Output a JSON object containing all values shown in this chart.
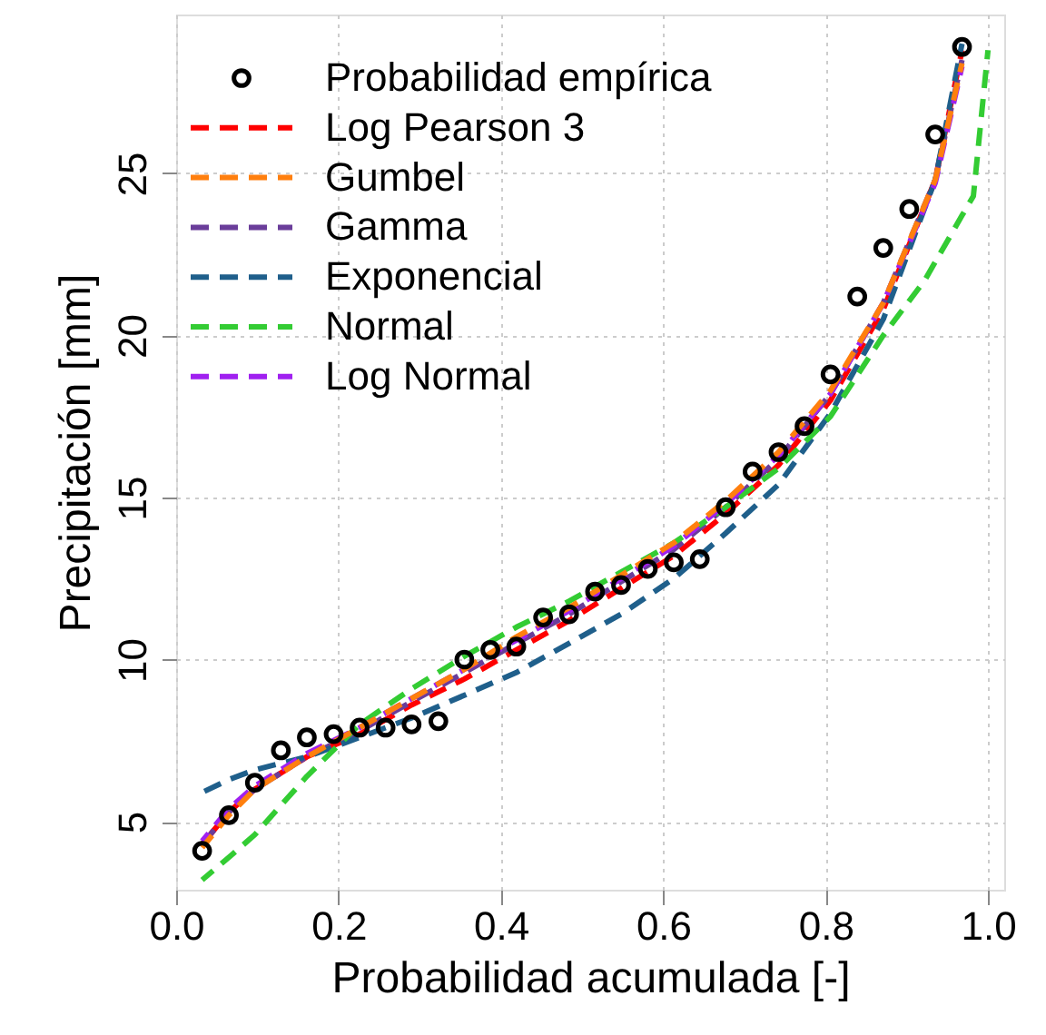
{
  "chart_data": {
    "type": "line",
    "xlabel": "Probabilidad acumulada [-]",
    "ylabel": "Precipitación [mm]",
    "xlim": [
      0,
      1.02
    ],
    "ylim": [
      2.9,
      29.9
    ],
    "xticks": [
      {
        "value": 0,
        "label": "0.0"
      },
      {
        "value": 0.2,
        "label": "0.2"
      },
      {
        "value": 0.4,
        "label": "0.4"
      },
      {
        "value": 0.6,
        "label": "0.6"
      },
      {
        "value": 0.8,
        "label": "0.8"
      },
      {
        "value": 1,
        "label": "1.0"
      }
    ],
    "yticks": [
      5,
      10,
      15,
      20,
      25
    ],
    "grid": true,
    "legend": "top left",
    "series": [
      {
        "name": "Probabilidad empírica",
        "type": "scatter",
        "marker": "circle",
        "color": "#000000",
        "x": [
          0.032,
          0.065,
          0.097,
          0.129,
          0.161,
          0.194,
          0.226,
          0.258,
          0.29,
          0.323,
          0.355,
          0.387,
          0.419,
          0.452,
          0.484,
          0.516,
          0.548,
          0.581,
          0.613,
          0.645,
          0.677,
          0.71,
          0.742,
          0.774,
          0.806,
          0.839,
          0.871,
          0.903,
          0.935,
          0.968
        ],
        "values": [
          4.1,
          5.2,
          6.2,
          7.2,
          7.6,
          7.7,
          7.9,
          7.9,
          8.0,
          8.1,
          10.0,
          10.3,
          10.4,
          11.3,
          11.4,
          12.1,
          12.3,
          12.8,
          13.0,
          13.1,
          14.7,
          15.8,
          16.4,
          17.2,
          18.8,
          21.2,
          22.7,
          23.9,
          26.2,
          28.9
        ]
      },
      {
        "name": "Log Pearson 3",
        "line_style": "dashed",
        "color": "#ff0000",
        "x": [
          0.032,
          0.065,
          0.097,
          0.161,
          0.226,
          0.29,
          0.355,
          0.419,
          0.484,
          0.548,
          0.613,
          0.677,
          0.742,
          0.806,
          0.871,
          0.935,
          0.968
        ],
        "values": [
          4.3,
          5.3,
          6.0,
          7.0,
          7.7,
          8.6,
          9.4,
          10.3,
          11.2,
          12.2,
          13.2,
          14.5,
          16.0,
          18.0,
          20.8,
          24.8,
          28.8
        ]
      },
      {
        "name": "Gumbel",
        "line_style": "dashed",
        "color": "#ff7f0e",
        "x": [
          0.032,
          0.065,
          0.097,
          0.161,
          0.226,
          0.29,
          0.355,
          0.419,
          0.484,
          0.548,
          0.613,
          0.677,
          0.742,
          0.806,
          0.871,
          0.935,
          0.968
        ],
        "values": [
          4.2,
          5.2,
          6.0,
          7.0,
          7.9,
          8.8,
          9.7,
          10.7,
          11.6,
          12.6,
          13.6,
          14.9,
          16.4,
          18.3,
          21.0,
          24.8,
          28.4
        ]
      },
      {
        "name": "Gamma",
        "line_style": "dashed",
        "color": "#6a3d9a",
        "x": [
          0.032,
          0.065,
          0.097,
          0.161,
          0.226,
          0.29,
          0.355,
          0.419,
          0.484,
          0.548,
          0.613,
          0.677,
          0.742,
          0.806,
          0.871,
          0.935,
          0.968
        ],
        "values": [
          4.3,
          5.3,
          6.0,
          7.0,
          7.8,
          8.7,
          9.6,
          10.5,
          11.4,
          12.4,
          13.4,
          14.7,
          16.2,
          18.2,
          21.0,
          24.8,
          28.5
        ]
      },
      {
        "name": "Exponencial",
        "line_style": "dashed",
        "color": "#1f5f8b",
        "x": [
          0.032,
          0.065,
          0.097,
          0.161,
          0.226,
          0.29,
          0.355,
          0.419,
          0.484,
          0.548,
          0.613,
          0.677,
          0.742,
          0.806,
          0.871,
          0.935,
          0.968
        ],
        "values": [
          5.9,
          6.3,
          6.6,
          7.0,
          7.6,
          8.2,
          8.9,
          9.6,
          10.5,
          11.4,
          12.5,
          13.9,
          15.4,
          17.6,
          20.5,
          24.8,
          29.0
        ]
      },
      {
        "name": "Normal",
        "line_style": "dashed",
        "color": "#33cc33",
        "x": [
          0.032,
          0.065,
          0.097,
          0.161,
          0.226,
          0.29,
          0.355,
          0.419,
          0.484,
          0.548,
          0.613,
          0.677,
          0.742,
          0.806,
          0.871,
          0.922,
          0.968,
          0.982,
          1.0
        ],
        "values": [
          3.2,
          3.9,
          4.6,
          6.4,
          8.0,
          9.1,
          10.1,
          11.0,
          11.8,
          12.7,
          13.6,
          14.7,
          15.9,
          17.5,
          20.0,
          21.7,
          23.7,
          24.3,
          28.8
        ]
      },
      {
        "name": "Log Normal",
        "line_style": "dashed",
        "color": "#a020f0",
        "x": [
          0.032,
          0.065,
          0.097,
          0.161,
          0.226,
          0.29,
          0.355,
          0.419,
          0.484,
          0.548,
          0.613,
          0.677,
          0.742,
          0.806,
          0.871,
          0.935,
          0.968
        ],
        "values": [
          4.4,
          5.4,
          6.1,
          7.1,
          7.9,
          8.8,
          9.7,
          10.6,
          11.5,
          12.5,
          13.5,
          14.8,
          16.3,
          18.2,
          21.0,
          24.7,
          28.3
        ]
      }
    ]
  }
}
